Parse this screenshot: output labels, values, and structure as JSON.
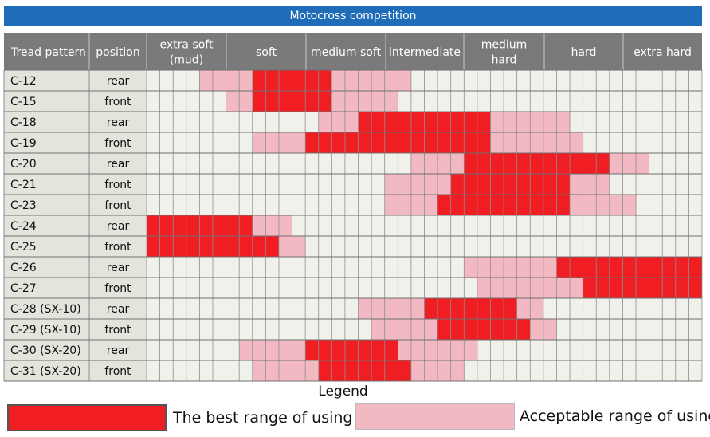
{
  "chart_data": {
    "type": "heatmap",
    "title": "Motocross competition",
    "columns": [
      "Tread pattern",
      "position",
      "extra soft (mud)",
      "soft",
      "medium soft",
      "intermediate",
      "medium hard",
      "hard",
      "extra hard"
    ],
    "hardness_scale": [
      "extra soft (mud)",
      "soft",
      "medium soft",
      "intermediate",
      "medium hard",
      "hard",
      "extra hard"
    ],
    "steps_per_hardness_class": 6,
    "rows": [
      {
        "pattern": "C-12",
        "position": "rear",
        "acceptable": [
          4,
          19
        ],
        "best": [
          8,
          13
        ]
      },
      {
        "pattern": "C-15",
        "position": "front",
        "acceptable": [
          6,
          18
        ],
        "best": [
          8,
          13
        ]
      },
      {
        "pattern": "C-18",
        "position": "rear",
        "acceptable": [
          13,
          31
        ],
        "best": [
          16,
          25
        ]
      },
      {
        "pattern": "C-19",
        "position": "front",
        "acceptable": [
          8,
          32
        ],
        "best": [
          12,
          25
        ]
      },
      {
        "pattern": "C-20",
        "position": "rear",
        "acceptable": [
          20,
          37
        ],
        "best": [
          24,
          34
        ]
      },
      {
        "pattern": "C-21",
        "position": "front",
        "acceptable": [
          18,
          34
        ],
        "best": [
          23,
          31
        ]
      },
      {
        "pattern": "C-23",
        "position": "front",
        "acceptable": [
          18,
          36
        ],
        "best": [
          22,
          31
        ]
      },
      {
        "pattern": "C-24",
        "position": "rear",
        "acceptable": [
          0,
          10
        ],
        "best": [
          0,
          7
        ]
      },
      {
        "pattern": "C-25",
        "position": "front",
        "acceptable": [
          0,
          11
        ],
        "best": [
          0,
          9
        ]
      },
      {
        "pattern": "C-26",
        "position": "rear",
        "acceptable": [
          24,
          41
        ],
        "best": [
          31,
          41
        ]
      },
      {
        "pattern": "C-27",
        "position": "front",
        "acceptable": [
          25,
          41
        ],
        "best": [
          33,
          41
        ]
      },
      {
        "pattern": "C-28 (SX-10)",
        "position": "rear",
        "acceptable": [
          16,
          29
        ],
        "best": [
          21,
          27
        ]
      },
      {
        "pattern": "C-29 (SX-10)",
        "position": "front",
        "acceptable": [
          17,
          30
        ],
        "best": [
          22,
          28
        ]
      },
      {
        "pattern": "C-30 (SX-20)",
        "position": "rear",
        "acceptable": [
          7,
          24
        ],
        "best": [
          12,
          18
        ]
      },
      {
        "pattern": "C-31 (SX-20)",
        "position": "front",
        "acceptable": [
          8,
          23
        ],
        "best": [
          13,
          19
        ]
      }
    ],
    "legend": [
      {
        "label": "The best range of using",
        "color": "#f01e23"
      },
      {
        "label": "Acceptable range of using",
        "color": "#f2b9c2"
      }
    ],
    "legend_title": "Legend"
  },
  "colors": {
    "header_bg": "#7a7a7a",
    "title_bg": "#1f6db8",
    "row_label_bg": "#e4e4dc",
    "grid_empty": "#f1f1ec",
    "best": "#f01e23",
    "acceptable": "#f2b9c2"
  }
}
